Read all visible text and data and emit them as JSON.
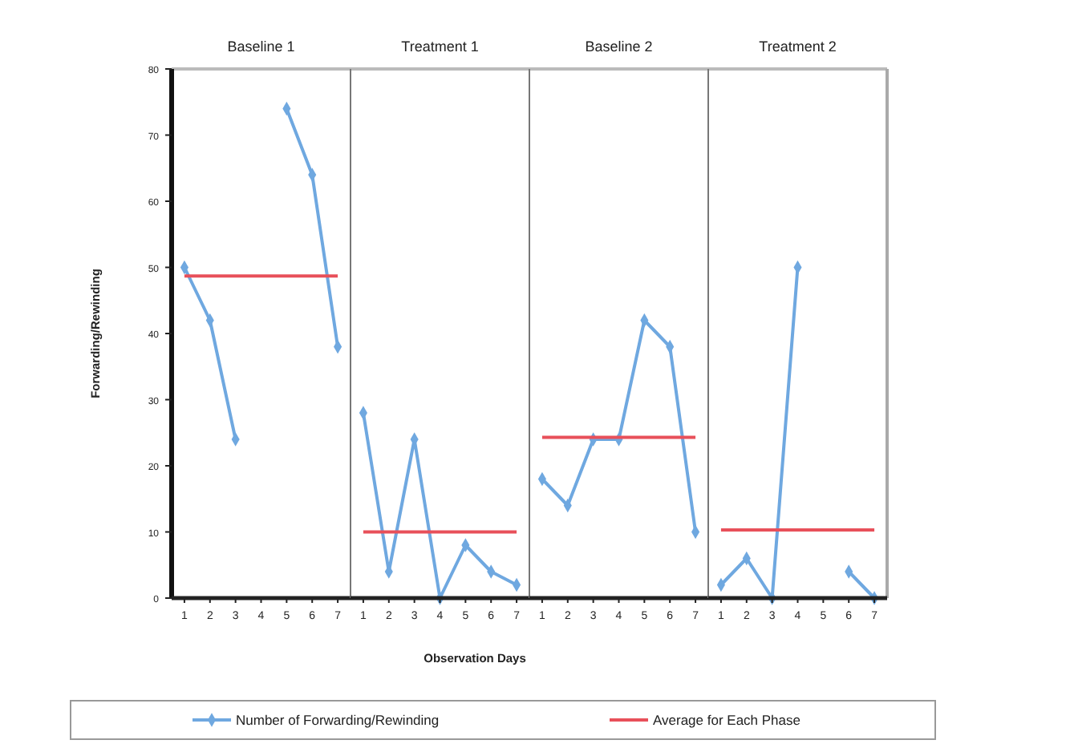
{
  "chart_data": [
    {
      "type": "line",
      "title": "Baseline 1",
      "ylabel": "Forwarding/Rewinding",
      "categories": [
        "1",
        "2",
        "3",
        "4",
        "5",
        "6",
        "7"
      ],
      "ylim": [
        0,
        80
      ],
      "yticks": [
        0,
        10,
        20,
        30,
        40,
        50,
        60,
        70,
        80
      ],
      "legend": "bottom",
      "series": [
        {
          "name": "Number of Forwarding/Rewinding",
          "color": "#6fa8e0",
          "marker": "diamond",
          "values": [
            50,
            42,
            24,
            null,
            74,
            64,
            38
          ]
        },
        {
          "name": "Average for Each Phase",
          "color": "#e8505a",
          "marker": "none",
          "values": [
            48.7,
            48.7,
            48.7,
            48.7,
            48.7,
            48.7,
            48.7
          ]
        }
      ]
    },
    {
      "type": "line",
      "title": "Treatment 1",
      "xlabel": "Observation Days",
      "categories": [
        "1",
        "2",
        "3",
        "4",
        "5",
        "6",
        "7"
      ],
      "ylim": [
        0,
        80
      ],
      "tick_labels": "x",
      "series": [
        {
          "color": "#6fa8e0",
          "marker": "diamond",
          "values": [
            28,
            4,
            24,
            0,
            8,
            4,
            2
          ]
        },
        {
          "color": "#e8505a",
          "marker": "none",
          "values": [
            10,
            10,
            10,
            10,
            10,
            10,
            10
          ]
        }
      ]
    },
    {
      "type": "line",
      "title": "Baseline 2",
      "categories": [
        "1",
        "2",
        "3",
        "4",
        "5",
        "6",
        "7"
      ],
      "ylim": [
        0,
        80
      ],
      "tick_labels": "x",
      "series": [
        {
          "color": "#6fa8e0",
          "marker": "diamond",
          "values": [
            18,
            14,
            24,
            24,
            42,
            38,
            10
          ]
        },
        {
          "color": "#e8505a",
          "marker": "none",
          "values": [
            24.3,
            24.3,
            24.3,
            24.3,
            24.3,
            24.3,
            24.3
          ]
        }
      ]
    },
    {
      "type": "line",
      "title": "Treatment 2",
      "categories": [
        "1",
        "2",
        "3",
        "4",
        "5",
        "6",
        "7"
      ],
      "ylim": [
        0,
        80
      ],
      "tick_labels": "x",
      "series": [
        {
          "color": "#6fa8e0",
          "marker": "diamond",
          "values": [
            2,
            6,
            0,
            50,
            null,
            4,
            0
          ]
        },
        {
          "color": "#e8505a",
          "marker": "none",
          "values": [
            10.3,
            10.3,
            10.3,
            10.3,
            10.3,
            10.3,
            10.3
          ]
        }
      ]
    }
  ]
}
